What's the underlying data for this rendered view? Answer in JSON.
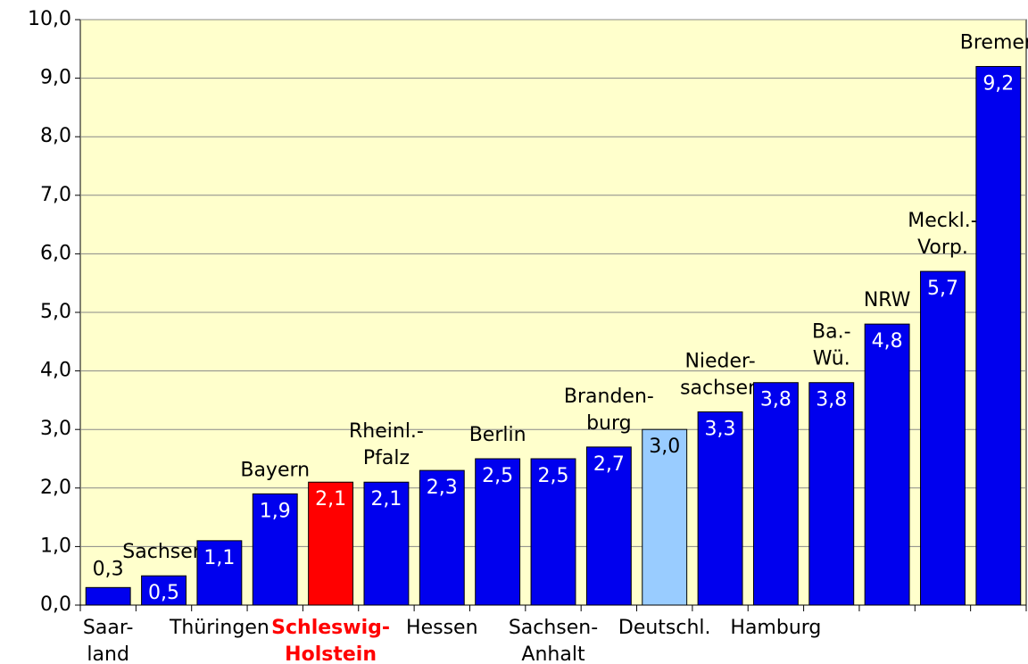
{
  "chart_data": {
    "type": "bar",
    "categories": [
      [
        "Saar-",
        "land"
      ],
      [
        "Sachsen"
      ],
      [
        "Thüringen"
      ],
      [
        "Bayern"
      ],
      [
        "Schleswig-",
        "Holstein"
      ],
      [
        "Rheinl.-",
        "Pfalz"
      ],
      [
        "Hessen"
      ],
      [
        "Berlin"
      ],
      [
        "Sachsen-",
        "Anhalt"
      ],
      [
        "Branden-",
        "burg"
      ],
      [
        "Deutschl."
      ],
      [
        "Nieder-",
        "sachsen"
      ],
      [
        "Hamburg"
      ],
      [
        "Ba.-",
        "Wü."
      ],
      [
        "NRW"
      ],
      [
        "Meckl.-",
        "Vorp."
      ],
      [
        "Bremen"
      ]
    ],
    "label_positions": [
      "below",
      "above",
      "below",
      "above",
      "below",
      "above",
      "below",
      "above",
      "below",
      "above",
      "below",
      "above",
      "below",
      "above",
      "above",
      "above",
      "above"
    ],
    "values": [
      0.3,
      0.5,
      1.1,
      1.9,
      2.1,
      2.1,
      2.3,
      2.5,
      2.5,
      2.7,
      3.0,
      3.3,
      3.8,
      3.8,
      4.8,
      5.7,
      9.2
    ],
    "value_labels": [
      "0,3",
      "0,5",
      "1,1",
      "1,9",
      "2,1",
      "2,1",
      "2,3",
      "2,5",
      "2,5",
      "2,7",
      "3,0",
      "3,3",
      "3,8",
      "3,8",
      "4,8",
      "5,7",
      "9,2"
    ],
    "colors": [
      "#0000ee",
      "#0000ee",
      "#0000ee",
      "#0000ee",
      "#ff0000",
      "#0000ee",
      "#0000ee",
      "#0000ee",
      "#0000ee",
      "#0000ee",
      "#99ccff",
      "#0000ee",
      "#0000ee",
      "#0000ee",
      "#0000ee",
      "#0000ee",
      "#0000ee"
    ],
    "ylim": [
      0,
      10
    ],
    "yticks": [
      {
        "value": 0,
        "label": "0,0"
      },
      {
        "value": 1,
        "label": "1,0"
      },
      {
        "value": 2,
        "label": "2,0"
      },
      {
        "value": 3,
        "label": "3,0"
      },
      {
        "value": 4,
        "label": "4,0"
      },
      {
        "value": 5,
        "label": "5,0"
      },
      {
        "value": 6,
        "label": "6,0"
      },
      {
        "value": 7,
        "label": "7,0"
      },
      {
        "value": 8,
        "label": "8,0"
      },
      {
        "value": 9,
        "label": "9,0"
      },
      {
        "value": 10,
        "label": "10,0"
      }
    ],
    "grid": true
  }
}
